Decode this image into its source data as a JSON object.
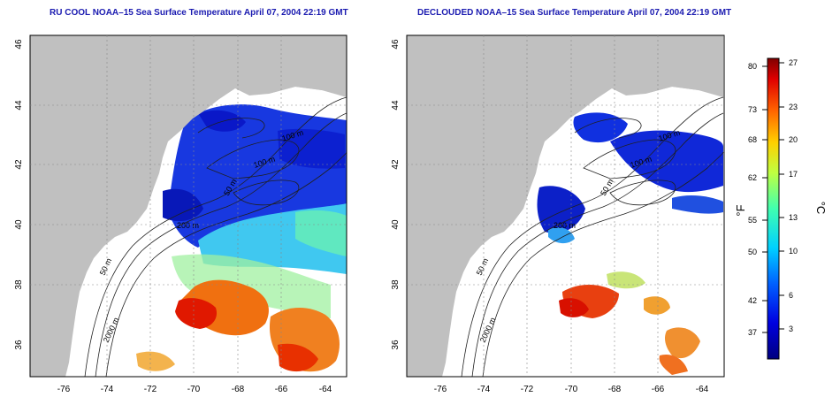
{
  "panels": [
    {
      "title": "RU COOL NOAA–15 Sea Surface Temperature April 07, 2004 22:19 GMT",
      "contour_labels": [
        "100 m",
        "100 m",
        "50 m",
        "200 m",
        "50 m",
        "2000 m"
      ]
    },
    {
      "title": "DECLOUDED NOAA–15 Sea Surface Temperature April 07, 2004 22:19 GMT",
      "contour_labels": [
        "100 m",
        "100 m",
        "50 m",
        "200 m",
        "50 m",
        "2000 m"
      ]
    }
  ],
  "axes": {
    "lon_ticks": [
      "-76",
      "-74",
      "-72",
      "-70",
      "-68",
      "-66",
      "-64"
    ],
    "lat_ticks": [
      "36",
      "38",
      "40",
      "42",
      "44",
      "46"
    ]
  },
  "colorbar": {
    "f_label": "°F",
    "c_label": "°C",
    "f_ticks": [
      "80",
      "73",
      "68",
      "62",
      "55",
      "50",
      "42",
      "37"
    ],
    "c_ticks": [
      "27",
      "23",
      "20",
      "17",
      "13",
      "10",
      "6",
      "3"
    ]
  },
  "colors": {
    "land": "#c0c0c0",
    "cold": "#1010d0",
    "warm": "#e02000",
    "title": "#1a1ab0"
  }
}
